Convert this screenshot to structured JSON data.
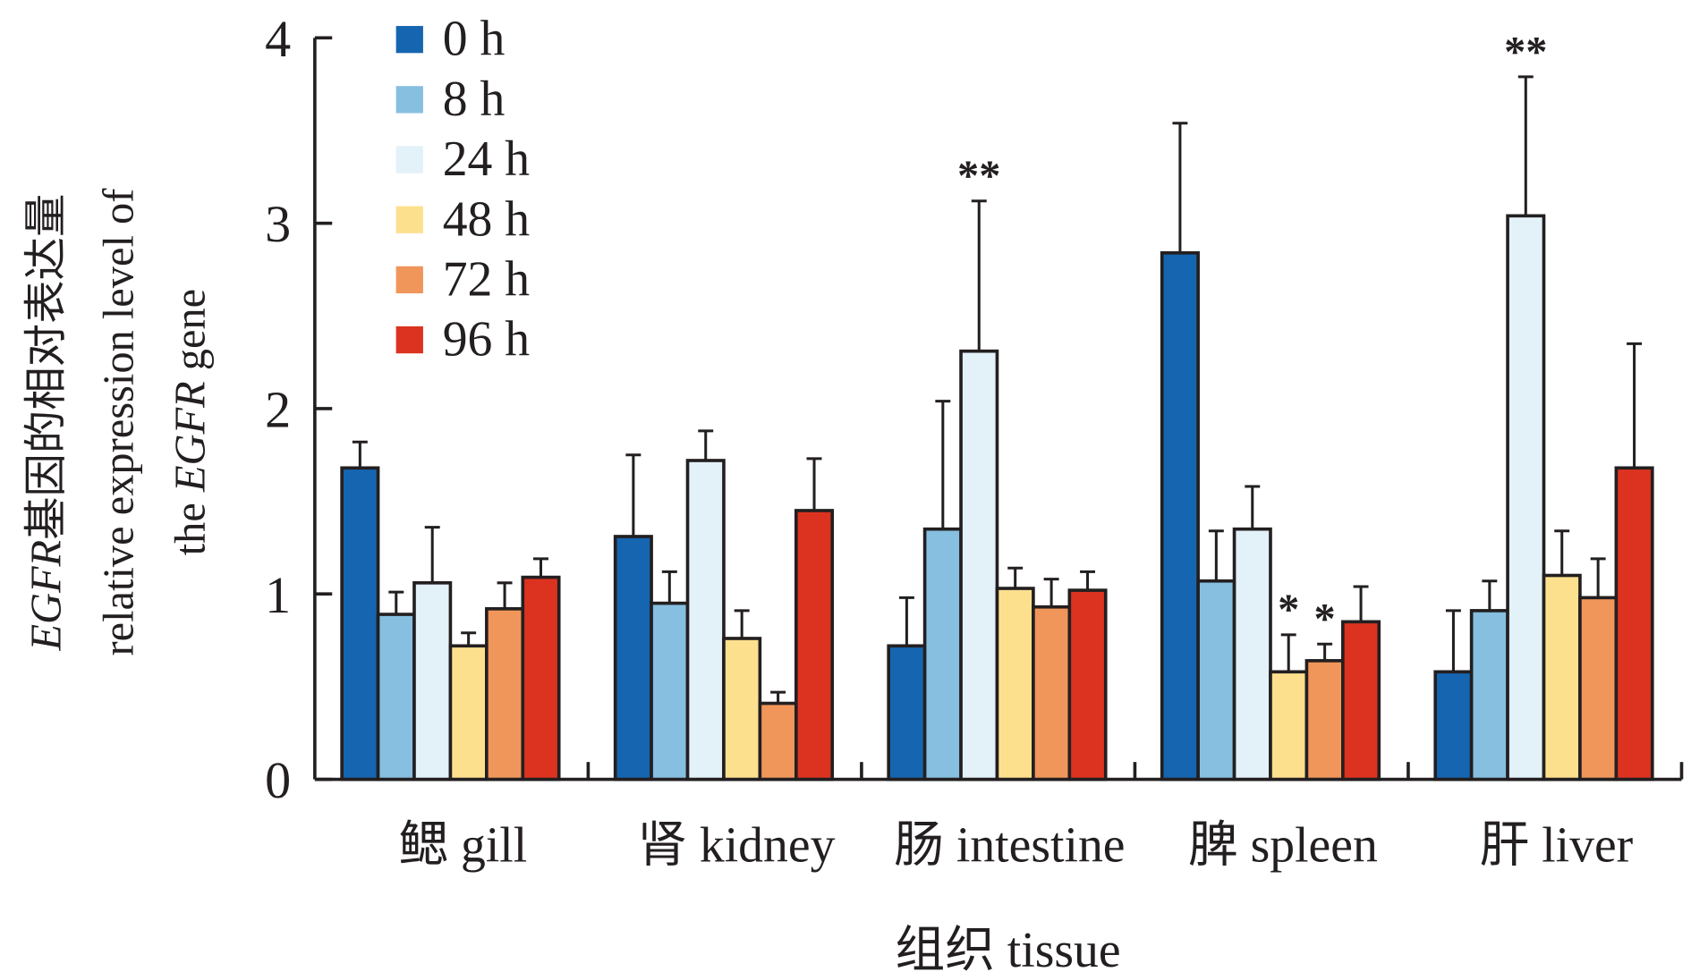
{
  "chart_data": {
    "type": "bar",
    "title": "",
    "ylabel_lines": [
      "EGFR基因的相对表达量",
      "relative expression level of",
      "the EGFR gene"
    ],
    "ylabel_parts": {
      "line1_italic": "EGFR",
      "line1_rest": "基因的相对表达量",
      "line2": "relative expression level of",
      "line3_pre": "the ",
      "line3_italic": "EGFR",
      "line3_post": " gene"
    },
    "xlabel": "组织 tissue",
    "ylim": [
      0,
      4
    ],
    "yticks": [
      "0",
      "1",
      "2",
      "3",
      "4"
    ],
    "categories": [
      "鳃 gill",
      "肾 kidney",
      "肠 intestine",
      "脾 spleen",
      "肝 liver"
    ],
    "legend_position": "top-left",
    "series": [
      {
        "name": "0 h",
        "color": "#1565b0",
        "values": [
          1.68,
          1.31,
          0.72,
          2.84,
          0.58
        ],
        "errors": [
          0.14,
          0.44,
          0.26,
          0.7,
          0.33
        ]
      },
      {
        "name": "8 h",
        "color": "#86bfe0",
        "values": [
          0.89,
          0.95,
          1.35,
          1.07,
          0.91
        ],
        "errors": [
          0.12,
          0.17,
          0.69,
          0.27,
          0.16
        ]
      },
      {
        "name": "24 h",
        "color": "#e3f1f9",
        "values": [
          1.06,
          1.72,
          2.31,
          1.35,
          3.04
        ],
        "errors": [
          0.3,
          0.16,
          0.81,
          0.23,
          0.75
        ]
      },
      {
        "name": "48 h",
        "color": "#fde08e",
        "values": [
          0.72,
          0.76,
          1.03,
          0.58,
          1.1
        ],
        "errors": [
          0.07,
          0.15,
          0.11,
          0.2,
          0.24
        ]
      },
      {
        "name": "72 h",
        "color": "#f0965a",
        "values": [
          0.92,
          0.41,
          0.93,
          0.64,
          0.98
        ],
        "errors": [
          0.14,
          0.06,
          0.15,
          0.09,
          0.21
        ]
      },
      {
        "name": "96 h",
        "color": "#dc3320",
        "values": [
          1.09,
          1.45,
          1.02,
          0.85,
          1.68
        ],
        "errors": [
          0.1,
          0.28,
          0.1,
          0.19,
          0.67
        ]
      }
    ],
    "annotations": [
      {
        "category": 2,
        "series": 2,
        "text": "**"
      },
      {
        "category": 3,
        "series": 3,
        "text": "*"
      },
      {
        "category": 3,
        "series": 4,
        "text": "*"
      },
      {
        "category": 4,
        "series": 2,
        "text": "**"
      }
    ]
  }
}
